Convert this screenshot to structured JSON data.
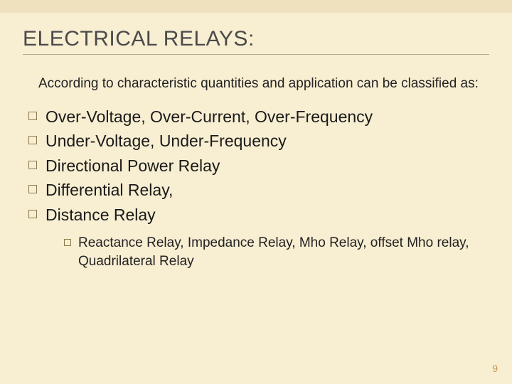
{
  "title": "ELECTRICAL RELAYS:",
  "intro": "According to characteristic quantities and application can be classified as:",
  "bullets": [
    "Over-Voltage, Over-Current, Over-Frequency",
    "Under-Voltage, Under-Frequency",
    "Directional Power Relay",
    "Differential Relay,",
    "Distance Relay"
  ],
  "subBullets": [
    "Reactance Relay, Impedance Relay, Mho Relay, offset Mho relay, Quadrilateral Relay"
  ],
  "pageNumber": "9",
  "colors": {
    "background": "#f8eed2",
    "topAccent": "#efe1bd",
    "titleText": "#4a4a4a",
    "rule": "#b0a98f",
    "bodyText": "#222222",
    "bulletBorder": "#8a7a4a",
    "pageNum": "#c49a52"
  },
  "fontSizes": {
    "title": 30,
    "intro": 19,
    "bullet": 23,
    "subBullet": 19,
    "pageNum": 14
  }
}
